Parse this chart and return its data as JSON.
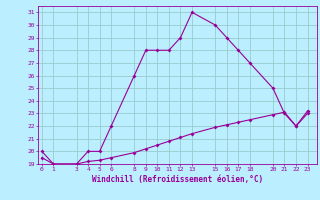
{
  "xlabel": "Windchill (Refroidissement éolien,°C)",
  "bg_color": "#bbeeff",
  "line_color": "#990099",
  "grid_color": "#99cccc",
  "series1_x": [
    0,
    1,
    3,
    4,
    5,
    6,
    8,
    9,
    10,
    11,
    12,
    13,
    15,
    16,
    17,
    18,
    20,
    21,
    22,
    23
  ],
  "series1_y": [
    20,
    19,
    19,
    20,
    20,
    22,
    26,
    28,
    28,
    28,
    29,
    31,
    30,
    29,
    28,
    27,
    25,
    23,
    22,
    23
  ],
  "series2_x": [
    0,
    1,
    3,
    4,
    5,
    6,
    8,
    9,
    10,
    11,
    12,
    13,
    15,
    16,
    17,
    18,
    20,
    21,
    22,
    23
  ],
  "series2_y": [
    19.5,
    19.0,
    19.0,
    19.2,
    19.3,
    19.5,
    19.9,
    20.2,
    20.5,
    20.8,
    21.1,
    21.4,
    21.9,
    22.1,
    22.3,
    22.5,
    22.9,
    23.1,
    22.0,
    23.2
  ],
  "ylim": [
    19,
    31.5
  ],
  "yticks": [
    19,
    20,
    21,
    22,
    23,
    24,
    25,
    26,
    27,
    28,
    29,
    30,
    31
  ],
  "xticks": [
    0,
    1,
    3,
    4,
    5,
    6,
    8,
    9,
    10,
    11,
    12,
    13,
    15,
    16,
    17,
    18,
    20,
    21,
    22,
    23
  ],
  "xlim": [
    -0.3,
    23.8
  ]
}
